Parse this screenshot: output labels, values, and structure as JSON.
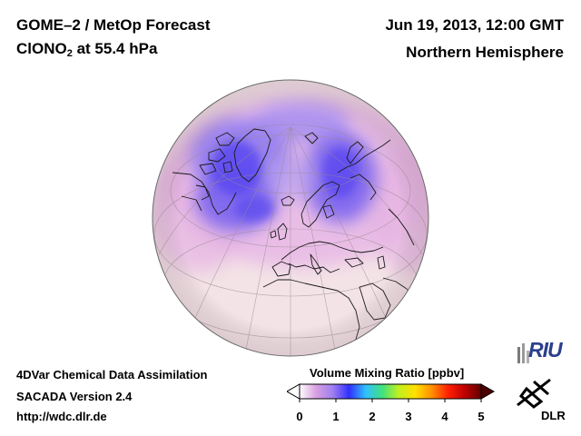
{
  "header": {
    "product": "GOME–2 / MetOp Forecast",
    "species_main": "ClONO",
    "species_sub": "2",
    "species_level": " at 55.4 hPa",
    "datetime": "Jun 19, 2013, 12:00 GMT",
    "region": "Northern Hemisphere"
  },
  "footer": {
    "method": "4DVar Chemical Data Assimilation",
    "version": "SACADA Version 2.4",
    "url": "http://wdc.dlr.de"
  },
  "colorbar": {
    "label": "Volume Mixing Ratio [ppbv]",
    "ticks": [
      "0",
      "1",
      "2",
      "3",
      "4",
      "5"
    ],
    "min": 0,
    "max": 5,
    "colors": [
      "#ffffff",
      "#d8a0e0",
      "#a080f0",
      "#3030ff",
      "#30c0ff",
      "#40e080",
      "#c0f020",
      "#ffe000",
      "#ff9000",
      "#ff2000",
      "#c00000",
      "#600000"
    ]
  },
  "logos": {
    "riu": "RIU",
    "dlr": "DLR"
  },
  "map": {
    "projection": "orthographic",
    "hemisphere": "Northern Hemisphere",
    "background_color": "#f3e3e6",
    "high_vmr_color": "#6e5cf0"
  }
}
